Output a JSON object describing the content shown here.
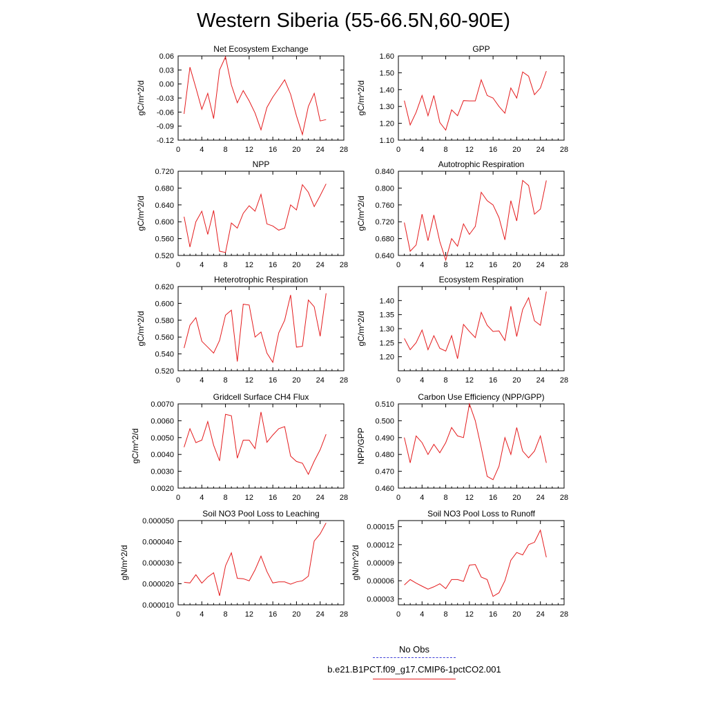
{
  "title": "Western Siberia (55-66.5N,60-90E)",
  "legend": {
    "obs_label": "No Obs",
    "obs_color": "#3b3bd6",
    "model_label": "b.e21.B1PCT.f09_g17.CMIP6-1pctCO2.001",
    "model_color": "#e41a1c"
  },
  "chart_data": [
    {
      "type": "line",
      "title": "Net Ecosystem Exchange",
      "ylabel": "gC/m^2/d",
      "xlim": [
        0,
        28
      ],
      "xticks": [
        0,
        4,
        8,
        12,
        16,
        20,
        24,
        28
      ],
      "ylim": [
        -0.12,
        0.06
      ],
      "yticks": [
        -0.12,
        -0.09,
        -0.06,
        -0.03,
        0.0,
        0.03,
        0.06
      ],
      "ytick_labels": [
        "-0.12",
        "-0.09",
        "-0.06",
        "-0.03",
        "0.00",
        "0.03",
        "0.06"
      ],
      "x": [
        1,
        2,
        3,
        4,
        5,
        6,
        7,
        8,
        9,
        10,
        11,
        12,
        13,
        14,
        15,
        16,
        17,
        18,
        19,
        20,
        21,
        22,
        23,
        24,
        25
      ],
      "values": [
        -0.064,
        0.036,
        -0.008,
        -0.054,
        -0.02,
        -0.074,
        0.03,
        0.058,
        -0.002,
        -0.04,
        -0.014,
        -0.036,
        -0.062,
        -0.098,
        -0.05,
        -0.028,
        -0.01,
        0.009,
        -0.022,
        -0.068,
        -0.108,
        -0.048,
        -0.02,
        -0.079,
        -0.076
      ]
    },
    {
      "type": "line",
      "title": "GPP",
      "ylabel": "gC/m^2/d",
      "xlim": [
        0,
        28
      ],
      "xticks": [
        0,
        4,
        8,
        12,
        16,
        20,
        24,
        28
      ],
      "ylim": [
        1.1,
        1.6
      ],
      "yticks": [
        1.1,
        1.2,
        1.3,
        1.4,
        1.5,
        1.6
      ],
      "ytick_labels": [
        "1.10",
        "1.20",
        "1.30",
        "1.40",
        "1.50",
        "1.60"
      ],
      "x": [
        1,
        2,
        3,
        4,
        5,
        6,
        7,
        8,
        9,
        10,
        11,
        12,
        13,
        14,
        15,
        16,
        17,
        18,
        19,
        20,
        21,
        22,
        23,
        24,
        25
      ],
      "values": [
        1.335,
        1.19,
        1.265,
        1.365,
        1.245,
        1.365,
        1.205,
        1.16,
        1.28,
        1.245,
        1.335,
        1.333,
        1.333,
        1.458,
        1.365,
        1.35,
        1.3,
        1.26,
        1.41,
        1.35,
        1.505,
        1.48,
        1.37,
        1.41,
        1.51
      ]
    },
    {
      "type": "line",
      "title": "NPP",
      "ylabel": "gC/m^2/d",
      "xlim": [
        0,
        28
      ],
      "xticks": [
        0,
        4,
        8,
        12,
        16,
        20,
        24,
        28
      ],
      "ylim": [
        0.52,
        0.72
      ],
      "yticks": [
        0.52,
        0.56,
        0.6,
        0.64,
        0.68,
        0.72
      ],
      "ytick_labels": [
        "0.520",
        "0.560",
        "0.600",
        "0.640",
        "0.680",
        "0.720"
      ],
      "x": [
        1,
        2,
        3,
        4,
        5,
        6,
        7,
        8,
        9,
        10,
        11,
        12,
        13,
        14,
        15,
        16,
        17,
        18,
        19,
        20,
        21,
        22,
        23,
        24,
        25
      ],
      "values": [
        0.612,
        0.54,
        0.6,
        0.625,
        0.57,
        0.627,
        0.53,
        0.527,
        0.597,
        0.585,
        0.62,
        0.638,
        0.625,
        0.665,
        0.595,
        0.59,
        0.58,
        0.585,
        0.64,
        0.628,
        0.688,
        0.67,
        0.636,
        0.662,
        0.69
      ]
    },
    {
      "type": "line",
      "title": "Autotrophic Respiration",
      "ylabel": "gC/m^2/d",
      "xlim": [
        0,
        28
      ],
      "xticks": [
        0,
        4,
        8,
        12,
        16,
        20,
        24,
        28
      ],
      "ylim": [
        0.64,
        0.84
      ],
      "yticks": [
        0.64,
        0.68,
        0.72,
        0.76,
        0.8,
        0.84
      ],
      "ytick_labels": [
        "0.640",
        "0.680",
        "0.720",
        "0.760",
        "0.800",
        "0.840"
      ],
      "x": [
        1,
        2,
        3,
        4,
        5,
        6,
        7,
        8,
        9,
        10,
        11,
        12,
        13,
        14,
        15,
        16,
        17,
        18,
        19,
        20,
        21,
        22,
        23,
        24,
        25
      ],
      "values": [
        0.718,
        0.65,
        0.665,
        0.738,
        0.675,
        0.736,
        0.673,
        0.629,
        0.68,
        0.662,
        0.715,
        0.69,
        0.709,
        0.79,
        0.77,
        0.76,
        0.73,
        0.677,
        0.77,
        0.722,
        0.818,
        0.806,
        0.738,
        0.75,
        0.818
      ]
    },
    {
      "type": "line",
      "title": "Heterotrophic Respiration",
      "ylabel": "gC/m^2/d",
      "xlim": [
        0,
        28
      ],
      "xticks": [
        0,
        4,
        8,
        12,
        16,
        20,
        24,
        28
      ],
      "ylim": [
        0.52,
        0.62
      ],
      "yticks": [
        0.52,
        0.54,
        0.56,
        0.58,
        0.6,
        0.62
      ],
      "ytick_labels": [
        "0.520",
        "0.540",
        "0.560",
        "0.580",
        "0.600",
        "0.620"
      ],
      "x": [
        1,
        2,
        3,
        4,
        5,
        6,
        7,
        8,
        9,
        10,
        11,
        12,
        13,
        14,
        15,
        16,
        17,
        18,
        19,
        20,
        21,
        22,
        23,
        24,
        25
      ],
      "values": [
        0.547,
        0.574,
        0.583,
        0.555,
        0.548,
        0.541,
        0.556,
        0.586,
        0.592,
        0.531,
        0.599,
        0.598,
        0.56,
        0.566,
        0.541,
        0.53,
        0.565,
        0.58,
        0.61,
        0.548,
        0.549,
        0.604,
        0.596,
        0.561,
        0.612
      ]
    },
    {
      "type": "line",
      "title": "Ecosystem Respiration",
      "ylabel": "gC/m^2/d",
      "xlim": [
        0,
        28
      ],
      "xticks": [
        0,
        4,
        8,
        12,
        16,
        20,
        24,
        28
      ],
      "ylim": [
        1.15,
        1.45
      ],
      "yticks": [
        1.2,
        1.25,
        1.3,
        1.35,
        1.4
      ],
      "ytick_labels": [
        "1.20",
        "1.25",
        "1.30",
        "1.35",
        "1.40"
      ],
      "x": [
        1,
        2,
        3,
        4,
        5,
        6,
        7,
        8,
        9,
        10,
        11,
        12,
        13,
        14,
        15,
        16,
        17,
        18,
        19,
        20,
        21,
        22,
        23,
        24,
        25
      ],
      "values": [
        1.265,
        1.225,
        1.25,
        1.295,
        1.225,
        1.275,
        1.23,
        1.22,
        1.275,
        1.193,
        1.315,
        1.29,
        1.268,
        1.358,
        1.312,
        1.29,
        1.292,
        1.258,
        1.38,
        1.272,
        1.368,
        1.41,
        1.328,
        1.312,
        1.432
      ]
    },
    {
      "type": "line",
      "title": "Gridcell Surface CH4 Flux",
      "ylabel": "gC/m^2/d",
      "xlim": [
        0,
        28
      ],
      "xticks": [
        0,
        4,
        8,
        12,
        16,
        20,
        24,
        28
      ],
      "ylim": [
        0.002,
        0.007
      ],
      "yticks": [
        0.002,
        0.003,
        0.004,
        0.005,
        0.006,
        0.007
      ],
      "ytick_labels": [
        "0.0020",
        "0.0030",
        "0.0040",
        "0.0050",
        "0.0060",
        "0.0070"
      ],
      "x": [
        1,
        2,
        3,
        4,
        5,
        6,
        7,
        8,
        9,
        10,
        11,
        12,
        13,
        14,
        15,
        16,
        17,
        18,
        19,
        20,
        21,
        22,
        23,
        24,
        25
      ],
      "values": [
        0.00443,
        0.00553,
        0.0047,
        0.00485,
        0.00595,
        0.00455,
        0.00362,
        0.00638,
        0.0063,
        0.00378,
        0.00485,
        0.00485,
        0.00435,
        0.00652,
        0.00472,
        0.00515,
        0.00553,
        0.00565,
        0.0039,
        0.00358,
        0.00348,
        0.00282,
        0.0036,
        0.00428,
        0.0052
      ]
    },
    {
      "type": "line",
      "title": "Carbon Use Efficiency (NPP/GPP)",
      "ylabel": "NPP/GPP",
      "xlim": [
        0,
        28
      ],
      "xticks": [
        0,
        4,
        8,
        12,
        16,
        20,
        24,
        28
      ],
      "ylim": [
        0.46,
        0.51
      ],
      "yticks": [
        0.46,
        0.47,
        0.48,
        0.49,
        0.5,
        0.51
      ],
      "ytick_labels": [
        "0.460",
        "0.470",
        "0.480",
        "0.490",
        "0.500",
        "0.510"
      ],
      "x": [
        1,
        2,
        3,
        4,
        5,
        6,
        7,
        8,
        9,
        10,
        11,
        12,
        13,
        14,
        15,
        16,
        17,
        18,
        19,
        20,
        21,
        22,
        23,
        24,
        25
      ],
      "values": [
        0.49,
        0.475,
        0.491,
        0.487,
        0.48,
        0.486,
        0.481,
        0.487,
        0.496,
        0.491,
        0.49,
        0.51,
        0.5,
        0.484,
        0.467,
        0.465,
        0.473,
        0.49,
        0.48,
        0.496,
        0.482,
        0.478,
        0.482,
        0.491,
        0.475
      ]
    },
    {
      "type": "line",
      "title": "Soil NO3 Pool Loss to Leaching",
      "ylabel": "gN/m^2/d",
      "xlim": [
        0,
        28
      ],
      "xticks": [
        0,
        4,
        8,
        12,
        16,
        20,
        24,
        28
      ],
      "ylim": [
        1e-05,
        5e-05
      ],
      "yticks": [
        1e-05,
        2e-05,
        3e-05,
        4e-05,
        5e-05
      ],
      "ytick_labels": [
        "0.000010",
        "0.000020",
        "0.000030",
        "0.000040",
        "0.000050"
      ],
      "x": [
        1,
        2,
        3,
        4,
        5,
        6,
        7,
        8,
        9,
        10,
        11,
        12,
        13,
        14,
        15,
        16,
        17,
        18,
        19,
        20,
        21,
        22,
        23,
        24,
        25
      ],
      "values": [
        2.07e-05,
        2.04e-05,
        2.43e-05,
        2.03e-05,
        2.32e-05,
        2.52e-05,
        1.43e-05,
        2.85e-05,
        3.47e-05,
        2.26e-05,
        2.24e-05,
        2.14e-05,
        2.66e-05,
        3.31e-05,
        2.58e-05,
        2.04e-05,
        2.09e-05,
        2.09e-05,
        1.98e-05,
        2.09e-05,
        2.14e-05,
        2.36e-05,
        4.03e-05,
        4.37e-05,
        4.89e-05
      ]
    },
    {
      "type": "line",
      "title": "Soil NO3 Pool Loss to Runoff",
      "ylabel": "gN/m^2/d",
      "xlim": [
        0,
        28
      ],
      "xticks": [
        0,
        4,
        8,
        12,
        16,
        20,
        24,
        28
      ],
      "ylim": [
        2e-05,
        0.00016
      ],
      "yticks": [
        3e-05,
        6e-05,
        9e-05,
        0.00012,
        0.00015
      ],
      "ytick_labels": [
        "0.00003",
        "0.00006",
        "0.00009",
        "0.00012",
        "0.00015"
      ],
      "x": [
        1,
        2,
        3,
        4,
        5,
        6,
        7,
        8,
        9,
        10,
        11,
        12,
        13,
        14,
        15,
        16,
        17,
        18,
        19,
        20,
        21,
        22,
        23,
        24,
        25
      ],
      "values": [
        5.3e-05,
        6.2e-05,
        5.6e-05,
        5.1e-05,
        4.6e-05,
        5e-05,
        5.5e-05,
        4.7e-05,
        6.2e-05,
        6.2e-05,
        5.9e-05,
        8.6e-05,
        8.7e-05,
        6.6e-05,
        6.2e-05,
        3.4e-05,
        4e-05,
        6e-05,
        9.4e-05,
        0.000107,
        0.000103,
        0.00012,
        0.000124,
        0.000144,
        9.9e-05
      ]
    }
  ]
}
